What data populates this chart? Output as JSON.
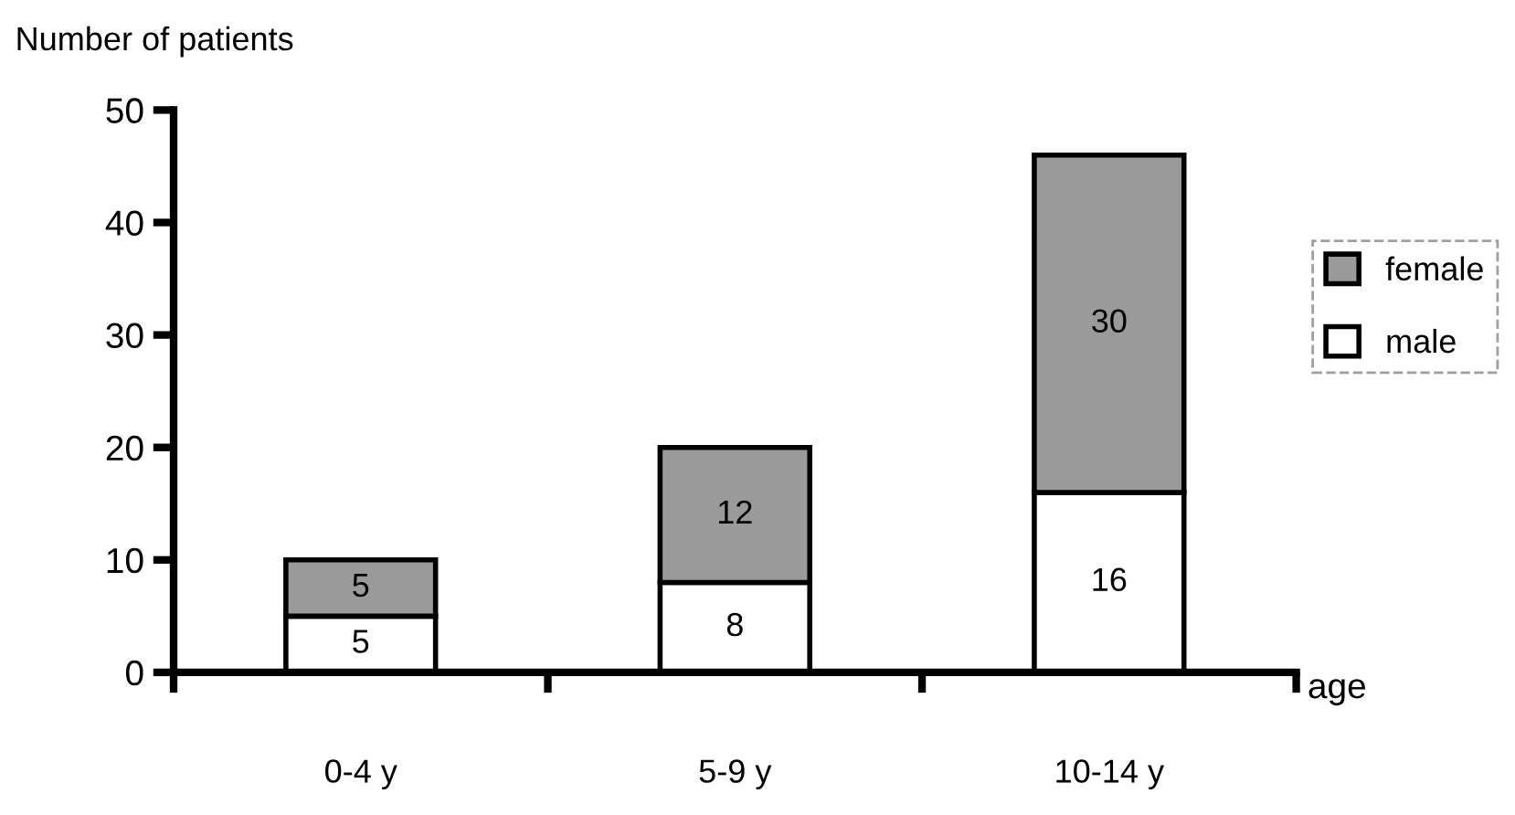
{
  "chart_data": {
    "type": "bar",
    "stacked": true,
    "ylabel": "Number of patients",
    "xlabel": "age",
    "categories": [
      "0-4 y",
      "5-9 y",
      "10-14 y"
    ],
    "series": [
      {
        "name": "male",
        "color": "#ffffff",
        "values": [
          5,
          8,
          16
        ]
      },
      {
        "name": "female",
        "color": "#9a9a9a",
        "values": [
          5,
          12,
          30
        ]
      }
    ],
    "ylim": [
      0,
      50
    ],
    "yticks": [
      0,
      10,
      20,
      30,
      40,
      50
    ],
    "grid": false,
    "legend": "right",
    "data_labels": true
  }
}
